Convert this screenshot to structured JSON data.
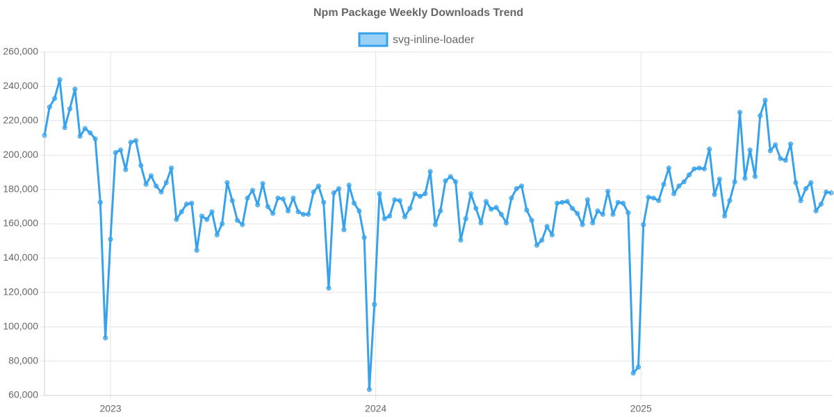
{
  "chart_data": {
    "type": "line",
    "title": "Npm Package Weekly Downloads Trend",
    "series": [
      {
        "name": "svg-inline-loader",
        "color": "#36a2eb",
        "fill": "rgba(54,162,235,0.5)",
        "values": [
          211500,
          228000,
          233000,
          244000,
          216000,
          227000,
          238500,
          211000,
          215500,
          213000,
          209500,
          172500,
          93500,
          151000,
          201500,
          203000,
          191500,
          207500,
          208500,
          194000,
          183000,
          188000,
          182000,
          178500,
          184000,
          192500,
          162500,
          167000,
          171500,
          172000,
          144500,
          164500,
          162500,
          167000,
          153500,
          160000,
          184000,
          173500,
          162000,
          159500,
          175000,
          179500,
          171000,
          183500,
          170000,
          166000,
          175000,
          174500,
          167500,
          175000,
          167000,
          165500,
          165500,
          178500,
          182000,
          172500,
          122500,
          178000,
          180500,
          156500,
          182500,
          172000,
          167500,
          152000,
          63500,
          113000,
          177500,
          163000,
          164500,
          174000,
          173500,
          164000,
          169000,
          177500,
          176000,
          177500,
          190500,
          159500,
          167500,
          185000,
          187500,
          184500,
          150500,
          163000,
          177500,
          169000,
          160500,
          173000,
          168500,
          169500,
          165500,
          160500,
          175000,
          180500,
          182000,
          168000,
          162000,
          147500,
          150500,
          158500,
          153500,
          172000,
          172500,
          173000,
          169000,
          166000,
          159500,
          174000,
          160500,
          167500,
          165500,
          179000,
          165500,
          172500,
          172000,
          166500,
          73000,
          76500,
          159500,
          175500,
          175000,
          173500,
          183000,
          192500,
          177500,
          182000,
          184500,
          188500,
          192000,
          192500,
          192000,
          203500,
          177000,
          186000,
          164500,
          173500,
          184500,
          225000,
          186500,
          203000,
          187500,
          223000,
          232000,
          202500,
          206000,
          198000,
          197000,
          206500,
          184000,
          173500,
          180500,
          184000,
          167500,
          171500,
          178500,
          178000
        ]
      }
    ],
    "xlim": [
      2022.751,
      2025.72
    ],
    "xticks": [
      2023,
      2024,
      2025
    ],
    "ylim": [
      60000,
      260000
    ],
    "yticks": [
      {
        "value": 60000,
        "label": "60,000"
      },
      {
        "value": 80000,
        "label": "80,000"
      },
      {
        "value": 100000,
        "label": "100,000"
      },
      {
        "value": 120000,
        "label": "120,000"
      },
      {
        "value": 140000,
        "label": "140,000"
      },
      {
        "value": 160000,
        "label": "160,000"
      },
      {
        "value": 180000,
        "label": "180,000"
      },
      {
        "value": 200000,
        "label": "200,000"
      },
      {
        "value": 220000,
        "label": "220,000"
      },
      {
        "value": 240000,
        "label": "240,000"
      },
      {
        "value": 260000,
        "label": "260,000"
      }
    ],
    "grid": true
  }
}
